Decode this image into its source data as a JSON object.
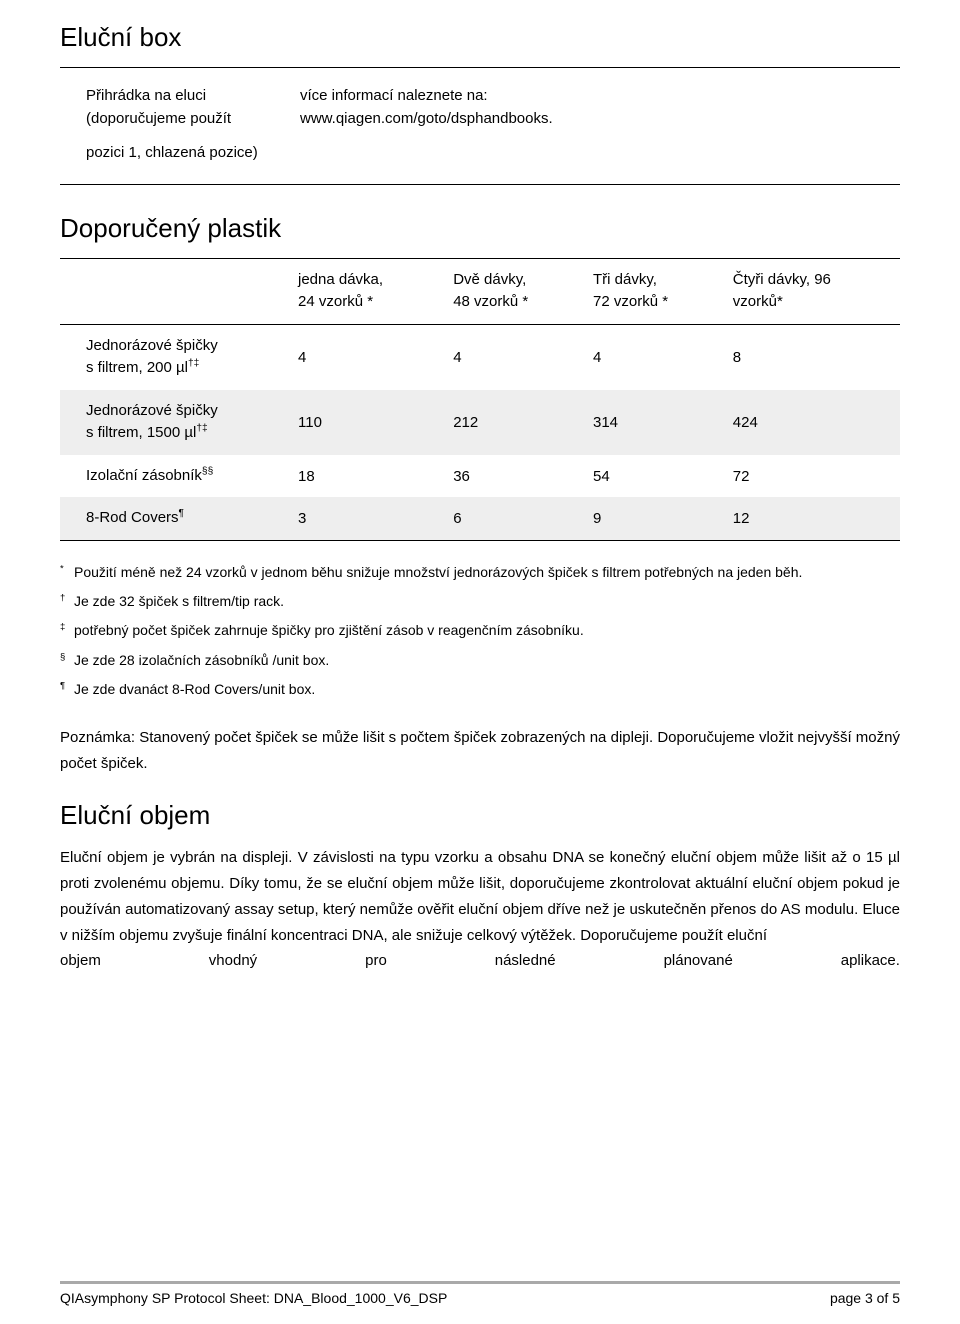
{
  "section_box": {
    "title": "Eluční box",
    "left_line1": "Přihrádka na eluci",
    "left_line2": "(doporučujeme použít",
    "left_line3": "pozici 1, chlazená pozice)",
    "right_line1": "více informací naleznete na:",
    "right_line2": "www.qiagen.com/goto/dsphandbooks."
  },
  "plastik": {
    "title": "Doporučený plastik",
    "headers": {
      "c1": "",
      "c2a": "jedna  dávka,",
      "c2b": "24 vzorků *",
      "c3a": "Dvě    dávky,",
      "c3b": "48 vzorků *",
      "c4a": "Tři     dávky,",
      "c4b": "72 vzorků *",
      "c5a": "Čtyři dávky, 96",
      "c5b": "vzorků*"
    },
    "rows": [
      {
        "shaded": false,
        "label": "Jednorázové špičky",
        "sub": "s filtrem, 200 µl",
        "sup": "†‡",
        "v": [
          "4",
          "4",
          "4",
          "8"
        ]
      },
      {
        "shaded": true,
        "label": "Jednorázové špičky",
        "sub": "s filtrem, 1500 µl",
        "sup": "†‡",
        "v": [
          "110",
          "212",
          "314",
          "424"
        ]
      },
      {
        "shaded": false,
        "label": "Izolační zásobník",
        "sub": "",
        "sup": "§§",
        "v": [
          "18",
          "36",
          "54",
          "72"
        ]
      },
      {
        "shaded": true,
        "label": "8-Rod Covers",
        "sub": "",
        "sup": "¶",
        "v": [
          "3",
          "6",
          "9",
          "12"
        ]
      }
    ]
  },
  "footnotes": [
    {
      "mark": "*",
      "text": "Použití méně než 24 vzorků v jednom běhu snižuje množství jednorázových špiček s filtrem potřebných na jeden běh."
    },
    {
      "mark": "†",
      "text": "Je zde 32 špiček s filtrem/tip rack."
    },
    {
      "mark": "‡",
      "text": "potřebný počet špiček zahrnuje špičky pro zjištění zásob v reagenčním zásobníku."
    },
    {
      "mark": "§",
      "text": "Je zde 28 izolačních zásobníků /unit box."
    },
    {
      "mark": "¶",
      "text": "Je zde dvanáct 8-Rod Covers/unit box."
    }
  ],
  "note": "Poznámka: Stanovený počet špiček se může lišit s počtem špiček zobrazených na dipleji. Doporučujeme vložit nejvyšší možný počet špiček.",
  "volume": {
    "title": "Eluční objem",
    "body": "Eluční objem je vybrán na displeji. V závislosti na typu vzorku a obsahu DNA se konečný eluční objem může lišit až o 15 µl proti zvolenému objemu. Díky tomu, že se eluční objem může lišit, doporučujeme zkontrolovat aktuální eluční objem pokud je používán automatizovaný assay setup, který nemůže ověřit eluční objem dříve než je uskutečněn přenos do AS modulu. Eluce v nižším objemu zvyšuje finální koncentraci DNA, ale snižuje celkový výtěžek. Doporučujeme použít eluční",
    "last_words": [
      "objem",
      "vhodný",
      "pro",
      "následné",
      "plánované",
      "aplikace."
    ]
  },
  "footer": {
    "left": "QIAsymphony SP Protocol Sheet: DNA_Blood_1000_V6_DSP",
    "right": "page 3 of 5"
  }
}
